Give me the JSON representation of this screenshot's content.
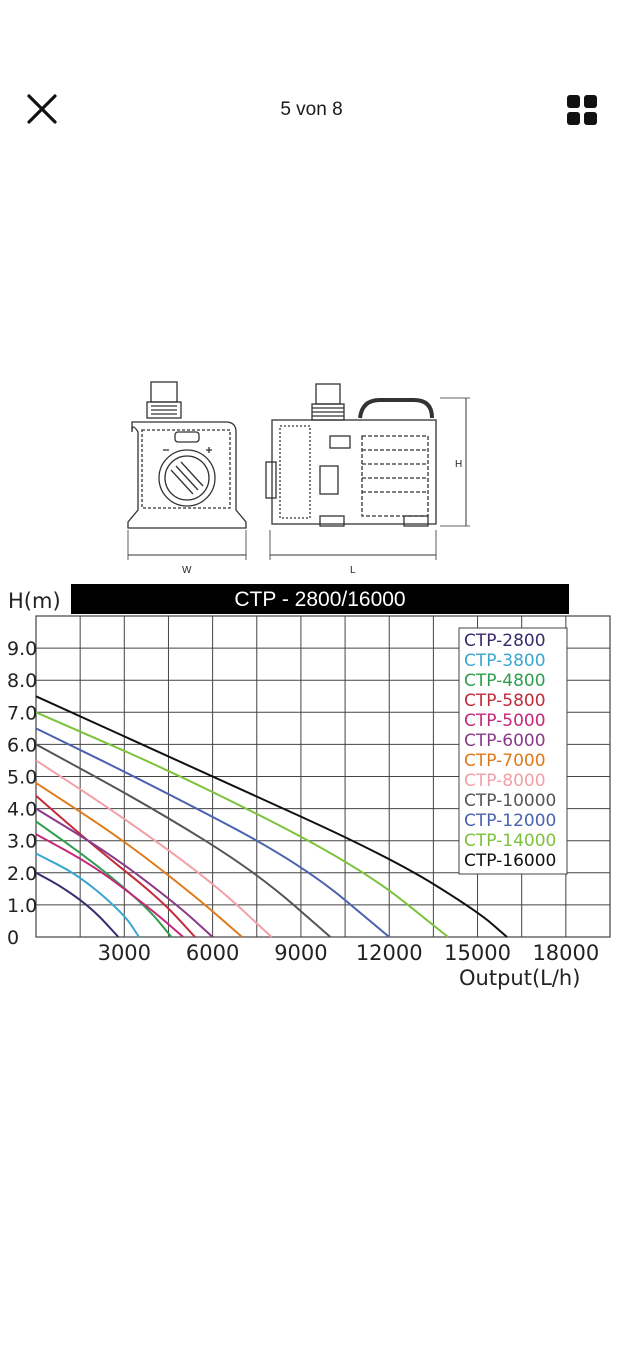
{
  "header": {
    "counter": "5 von 8"
  },
  "icons": {
    "close": "close-icon",
    "grid": "grid-view-icon"
  },
  "product_diagram": {
    "labels": {
      "width": "W",
      "length": "L",
      "height": "H"
    }
  },
  "chart_data": {
    "type": "line",
    "title": "CTP - 2800/16000",
    "ylabel": "H(m)",
    "xlabel": "Output(L/h)",
    "xlim": [
      0,
      19500
    ],
    "ylim": [
      0,
      10
    ],
    "xticks": [
      3000,
      6000,
      9000,
      12000,
      15000,
      18000
    ],
    "xtick_labels": [
      "3000",
      "6000",
      "9000",
      "12000",
      "15000",
      "18000"
    ],
    "yticks": [
      0,
      1,
      2,
      3,
      4,
      5,
      6,
      7,
      8,
      9
    ],
    "ytick_labels": [
      "0",
      "1.0",
      "2.0",
      "3.0",
      "4.0",
      "5.0",
      "6.0",
      "7.0",
      "8.0",
      "9.0"
    ],
    "grid": true,
    "legend_position": "top-right",
    "series": [
      {
        "name": "CTP-2800",
        "color": "#3a2a6e",
        "x": [
          0,
          1000,
          2000,
          2800
        ],
        "y": [
          2.0,
          1.5,
          0.8,
          0
        ]
      },
      {
        "name": "CTP-3800",
        "color": "#3aa6d2",
        "x": [
          0,
          1500,
          3000,
          3500
        ],
        "y": [
          2.6,
          1.9,
          0.7,
          0
        ]
      },
      {
        "name": "CTP-4800",
        "color": "#2e9e4e",
        "x": [
          0,
          2000,
          3800,
          4600
        ],
        "y": [
          3.6,
          2.3,
          0.9,
          0
        ]
      },
      {
        "name": "CTP-5800",
        "color": "#c42a3a",
        "x": [
          0,
          2000,
          4200,
          5400
        ],
        "y": [
          4.4,
          2.8,
          1.2,
          0
        ]
      },
      {
        "name": "CTP-5000",
        "color": "#c4287a",
        "x": [
          0,
          2000,
          4000,
          5000
        ],
        "y": [
          3.2,
          2.2,
          0.8,
          0
        ]
      },
      {
        "name": "CTP-6000",
        "color": "#8a3a8a",
        "x": [
          0,
          2500,
          4800,
          6000
        ],
        "y": [
          4.0,
          2.6,
          1.0,
          0
        ]
      },
      {
        "name": "CTP-7000",
        "color": "#e07a1a",
        "x": [
          0,
          3000,
          5500,
          7000
        ],
        "y": [
          4.8,
          3.0,
          1.2,
          0
        ]
      },
      {
        "name": "CTP-8000",
        "color": "#f2a0a8",
        "x": [
          0,
          3000,
          6000,
          8000
        ],
        "y": [
          5.5,
          3.7,
          1.7,
          0
        ]
      },
      {
        "name": "CTP-10000",
        "color": "#555555",
        "x": [
          0,
          4000,
          7500,
          10000
        ],
        "y": [
          6.0,
          4.0,
          2.0,
          0
        ]
      },
      {
        "name": "CTP-12000",
        "color": "#4a62b0",
        "x": [
          0,
          4000,
          9000,
          12000
        ],
        "y": [
          6.5,
          4.7,
          2.3,
          0
        ]
      },
      {
        "name": "CTP-14000",
        "color": "#7cc23a",
        "x": [
          0,
          5000,
          11000,
          14000
        ],
        "y": [
          7.0,
          5.0,
          2.2,
          0
        ]
      },
      {
        "name": "CTP-16000",
        "color": "#111111",
        "x": [
          0,
          6000,
          12000,
          15000,
          16000
        ],
        "y": [
          7.5,
          5.0,
          2.5,
          0.8,
          0
        ]
      }
    ]
  }
}
